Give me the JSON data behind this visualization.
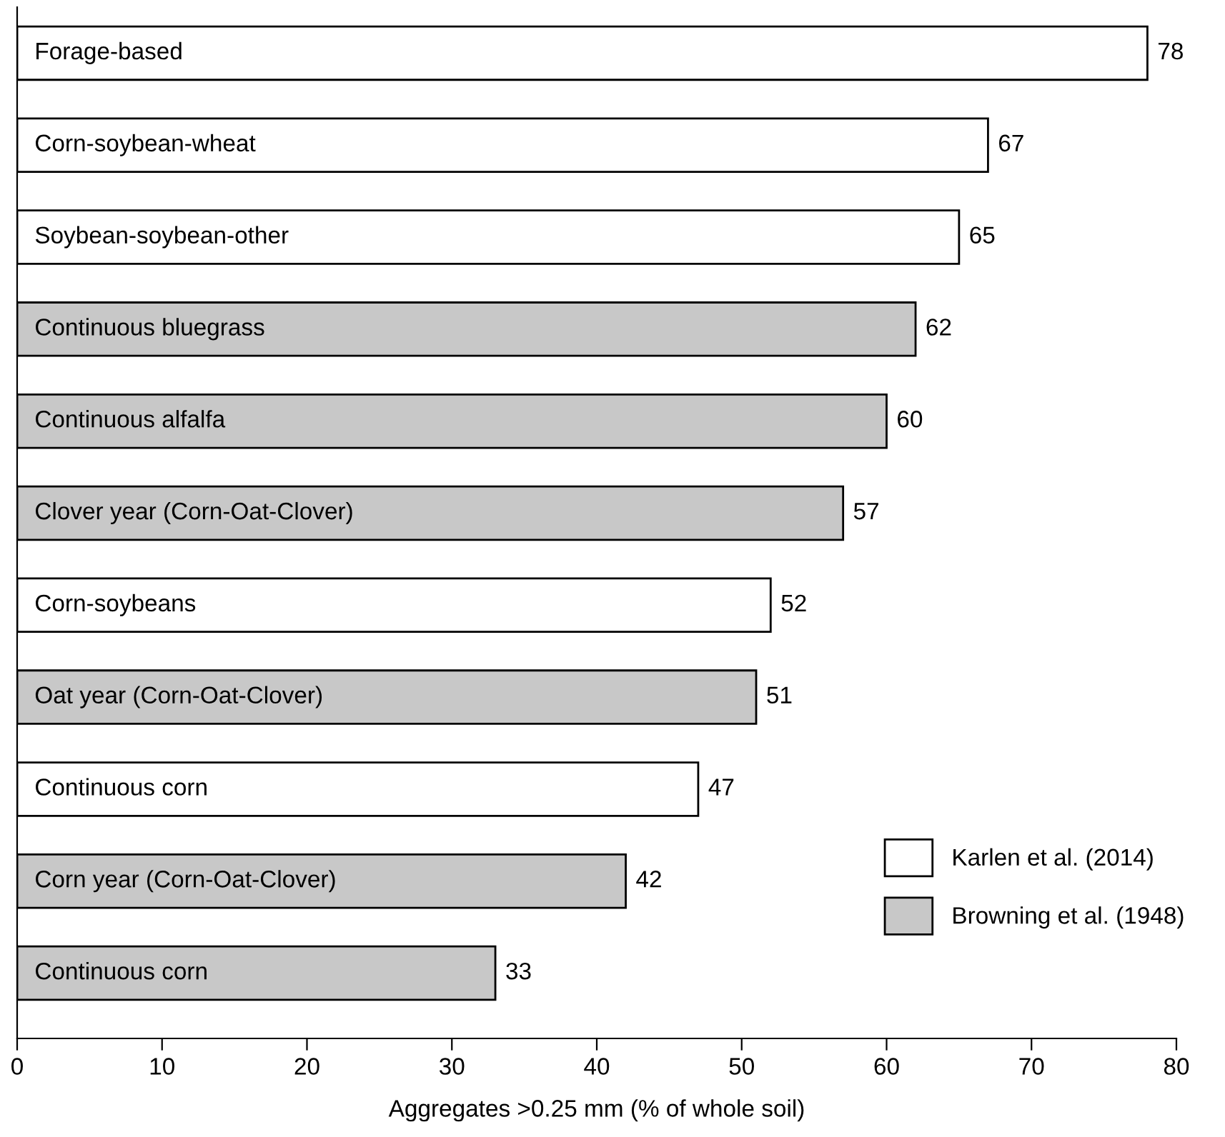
{
  "chart_data": {
    "type": "bar",
    "orientation": "horizontal",
    "categories": [
      "Forage-based",
      "Corn-soybean-wheat",
      "Soybean-soybean-other",
      "Continuous bluegrass",
      "Continuous alfalfa",
      "Clover year (Corn-Oat-Clover)",
      "Corn-soybeans",
      "Oat year (Corn-Oat-Clover)",
      "Continuous corn",
      "Corn year (Corn-Oat-Clover)",
      "Continuous corn"
    ],
    "series": [
      {
        "name": "Karlen et al. (2014)",
        "color": "#ffffff",
        "values": [
          78,
          67,
          65,
          null,
          null,
          null,
          52,
          null,
          47,
          null,
          null
        ]
      },
      {
        "name": "Browning et al. (1948)",
        "color": "#c8c8c8",
        "values": [
          null,
          null,
          null,
          62,
          60,
          57,
          null,
          51,
          null,
          42,
          33
        ]
      }
    ],
    "xlabel": "Aggregates >0.25 mm (% of whole soil)",
    "xlim": [
      0,
      80
    ],
    "xticks": [
      0,
      10,
      20,
      30,
      40,
      50,
      60,
      70,
      80
    ],
    "data_labels": true,
    "grid": false,
    "legend": "bottom right"
  }
}
